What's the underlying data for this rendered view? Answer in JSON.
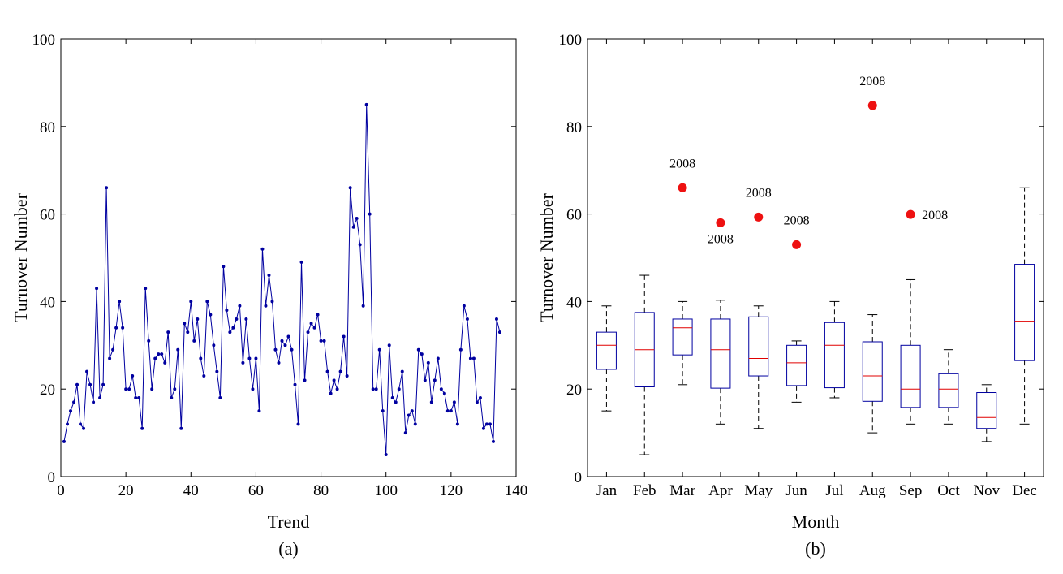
{
  "chart_data": [
    {
      "type": "line",
      "panel_label": "(a)",
      "xlabel": "Trend",
      "ylabel": "Turnover Number",
      "xlim": [
        0,
        140
      ],
      "ylim": [
        0,
        100
      ],
      "xticks": [
        0,
        20,
        40,
        60,
        80,
        100,
        120,
        140
      ],
      "yticks": [
        0,
        20,
        40,
        60,
        80,
        100
      ],
      "grid": false,
      "marker": "dot",
      "color": "#0000a0",
      "series": [
        {
          "x": [
            1,
            2,
            3,
            4,
            5,
            6,
            7,
            8,
            9,
            10,
            11,
            12,
            13,
            14,
            15,
            16,
            17,
            18,
            19,
            20,
            21,
            22,
            23,
            24,
            25,
            26,
            27,
            28,
            29,
            30,
            31,
            32,
            33,
            34,
            35,
            36,
            37,
            38,
            39,
            40,
            41,
            42,
            43,
            44,
            45,
            46,
            47,
            48,
            49,
            50,
            51,
            52,
            53,
            54,
            55,
            56,
            57,
            58,
            59,
            60,
            61,
            62,
            63,
            64,
            65,
            66,
            67,
            68,
            69,
            70,
            71,
            72,
            73,
            74,
            75,
            76,
            77,
            78,
            79,
            80,
            81,
            82,
            83,
            84,
            85,
            86,
            87,
            88,
            89,
            90,
            91,
            92,
            93,
            94,
            95,
            96,
            97,
            98,
            99,
            100,
            101,
            102,
            103,
            104,
            105,
            106,
            107,
            108,
            109,
            110,
            111,
            112,
            113,
            114,
            115,
            116,
            117,
            118,
            119,
            120,
            121,
            122,
            123,
            124,
            125,
            126,
            127,
            128,
            129,
            130,
            131,
            132,
            133,
            134,
            135
          ],
          "y": [
            8,
            12,
            15,
            17,
            21,
            12,
            11,
            24,
            21,
            17,
            43,
            18,
            21,
            66,
            27,
            29,
            34,
            40,
            34,
            20,
            20,
            23,
            18,
            18,
            11,
            43,
            31,
            20,
            27,
            28,
            28,
            26,
            33,
            18,
            20,
            29,
            11,
            35,
            33,
            40,
            31,
            36,
            27,
            23,
            40,
            37,
            30,
            24,
            18,
            48,
            38,
            33,
            34,
            36,
            39,
            26,
            36,
            27,
            20,
            27,
            15,
            52,
            39,
            46,
            40,
            29,
            26,
            31,
            30,
            32,
            29,
            21,
            12,
            49,
            22,
            33,
            35,
            34,
            37,
            31,
            31,
            24,
            19,
            22,
            20,
            24,
            32,
            23,
            66,
            57,
            59,
            53,
            39,
            85,
            60,
            20,
            20,
            29,
            15,
            5,
            30,
            18,
            17,
            20,
            24,
            10,
            14,
            15,
            12,
            29,
            28,
            22,
            26,
            17,
            22,
            27,
            20,
            19,
            15,
            15,
            17,
            12,
            29,
            39,
            36,
            27,
            27,
            17,
            18,
            11,
            12,
            12,
            8,
            36,
            33
          ]
        }
      ]
    },
    {
      "type": "box",
      "panel_label": "(b)",
      "xlabel": "Month",
      "ylabel": "Turnover Number",
      "ylim": [
        0,
        100
      ],
      "yticks": [
        0,
        20,
        40,
        60,
        80,
        100
      ],
      "grid": false,
      "categories": [
        "Jan",
        "Feb",
        "Mar",
        "Apr",
        "May",
        "Jun",
        "Jul",
        "Aug",
        "Sep",
        "Oct",
        "Nov",
        "Dec"
      ],
      "box_color": "#0000a0",
      "median_color": "#e00000",
      "outlier_color": "#ee1111",
      "boxes": [
        {
          "whisker_low": 15,
          "q1": 24.5,
          "median": 30,
          "q3": 33,
          "whisker_high": 39
        },
        {
          "whisker_low": 5,
          "q1": 20.5,
          "median": 29,
          "q3": 37.5,
          "whisker_high": 46
        },
        {
          "whisker_low": 21,
          "q1": 27.8,
          "median": 34,
          "q3": 36,
          "whisker_high": 40
        },
        {
          "whisker_low": 12,
          "q1": 20.2,
          "median": 29,
          "q3": 36,
          "whisker_high": 40.3
        },
        {
          "whisker_low": 11,
          "q1": 23,
          "median": 27,
          "q3": 36.5,
          "whisker_high": 39
        },
        {
          "whisker_low": 17,
          "q1": 20.8,
          "median": 26,
          "q3": 30,
          "whisker_high": 31
        },
        {
          "whisker_low": 18,
          "q1": 20.3,
          "median": 30,
          "q3": 35.2,
          "whisker_high": 40
        },
        {
          "whisker_low": 10,
          "q1": 17.2,
          "median": 23,
          "q3": 30.8,
          "whisker_high": 37
        },
        {
          "whisker_low": 12,
          "q1": 15.8,
          "median": 20,
          "q3": 30,
          "whisker_high": 45
        },
        {
          "whisker_low": 12,
          "q1": 15.8,
          "median": 20,
          "q3": 23.5,
          "whisker_high": 29
        },
        {
          "whisker_low": 8,
          "q1": 11,
          "median": 13.5,
          "q3": 19.2,
          "whisker_high": 21
        },
        {
          "whisker_low": 12,
          "q1": 26.5,
          "median": 35.5,
          "q3": 48.5,
          "whisker_high": 66
        }
      ],
      "outliers": [
        {
          "month": "Mar",
          "value": 66,
          "label": "2008",
          "label_pos": "above"
        },
        {
          "month": "Apr",
          "value": 58,
          "label": "2008",
          "label_pos": "below"
        },
        {
          "month": "May",
          "value": 59.3,
          "label": "2008",
          "label_pos": "above"
        },
        {
          "month": "Jun",
          "value": 53,
          "label": "2008",
          "label_pos": "above"
        },
        {
          "month": "Aug",
          "value": 84.8,
          "label": "2008",
          "label_pos": "above"
        },
        {
          "month": "Sep",
          "value": 59.9,
          "label": "2008",
          "label_pos": "right"
        }
      ]
    }
  ]
}
